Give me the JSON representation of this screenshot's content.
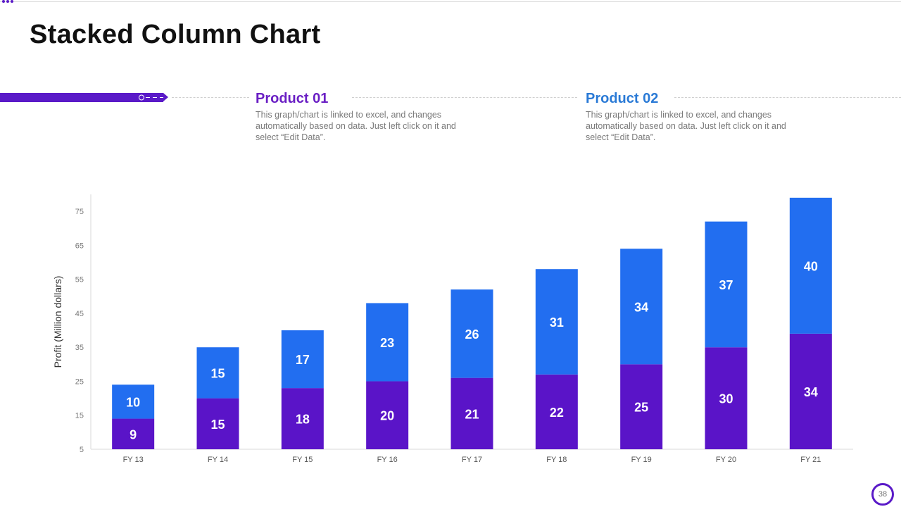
{
  "page": {
    "title": "Stacked Column Chart",
    "page_number": "38"
  },
  "products": [
    {
      "title": "Product 01",
      "description": "This graph/chart is linked to excel, and changes automatically based on data. Just left click on it and select “Edit Data”.",
      "color": "#6a1fc4"
    },
    {
      "title": "Product 02",
      "description": "This graph/chart is linked to excel, and changes automatically based on data. Just left click on it and select “Edit Data”.",
      "color": "#2a7ad6"
    }
  ],
  "chart_data": {
    "type": "bar",
    "stacked": true,
    "title": "",
    "xlabel": "",
    "ylabel": "Profit  (Million dollars)",
    "categories": [
      "FY 13",
      "FY 14",
      "FY 15",
      "FY 16",
      "FY 17",
      "FY 18",
      "FY 19",
      "FY 20",
      "FY 21"
    ],
    "series": [
      {
        "name": "Product 01",
        "color": "#5a14c8",
        "values": [
          9,
          15,
          18,
          20,
          21,
          22,
          25,
          30,
          34
        ]
      },
      {
        "name": "Product 02",
        "color": "#226ef0",
        "values": [
          10,
          15,
          17,
          23,
          26,
          31,
          34,
          37,
          40
        ]
      }
    ],
    "ylim": [
      5,
      80
    ],
    "yticks": [
      5,
      15,
      25,
      35,
      45,
      55,
      65,
      75
    ],
    "grid": false
  }
}
